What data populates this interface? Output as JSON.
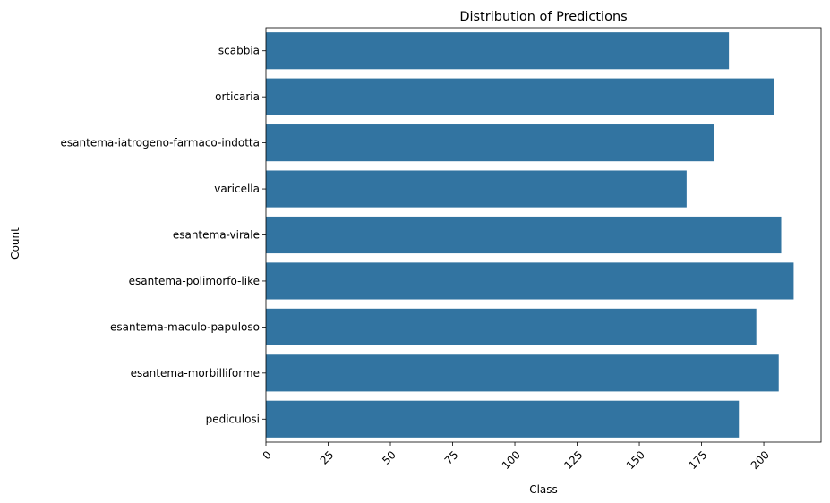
{
  "chart_data": {
    "type": "bar",
    "orientation": "horizontal",
    "title": "Distribution of Predictions",
    "xlabel": "Class",
    "ylabel": "Count",
    "categories": [
      "scabbia",
      "orticaria",
      "esantema-iatrogeno-farmaco-indotta",
      "varicella",
      "esantema-virale",
      "esantema-polimorfo-like",
      "esantema-maculo-papuloso",
      "esantema-morbilliforme",
      "pediculosi"
    ],
    "values": [
      186,
      204,
      180,
      169,
      207,
      212,
      197,
      206,
      190
    ],
    "xlim": [
      0,
      223
    ],
    "xticks": [
      0,
      25,
      50,
      75,
      100,
      125,
      150,
      175,
      200
    ],
    "xtick_rotation": 45,
    "grid": false,
    "bar_color": "#3274a1"
  }
}
